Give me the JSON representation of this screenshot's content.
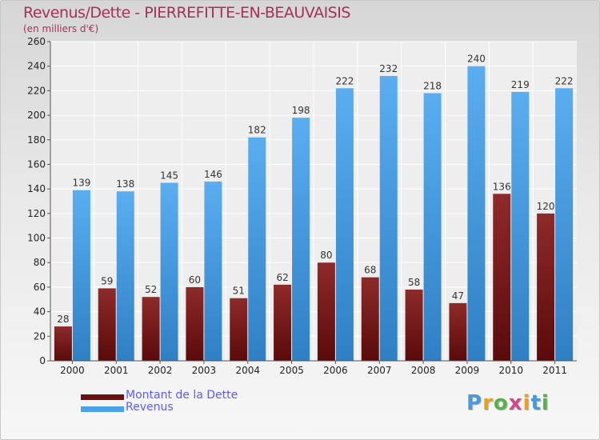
{
  "title": "Revenus/Dette - PIERREFITTE-EN-BEAUVAISIS",
  "subtitle": "(en milliers d'€)",
  "brand": "Proxiti",
  "colors": {
    "title": "#a3325a",
    "debt": "#7a1c1c",
    "revenue": "#4aa3e8",
    "legend_text": "#5a5aff"
  },
  "chart_data": {
    "type": "bar",
    "title": "Revenus/Dette - PIERREFITTE-EN-BEAUVAISIS",
    "subtitle": "(en milliers d'€)",
    "categories": [
      "2000",
      "2001",
      "2002",
      "2003",
      "2004",
      "2005",
      "2006",
      "2007",
      "2008",
      "2009",
      "2010",
      "2011"
    ],
    "series": [
      {
        "name": "Montant de la Dette",
        "values": [
          28,
          59,
          52,
          60,
          51,
          62,
          80,
          68,
          58,
          47,
          136,
          120
        ]
      },
      {
        "name": "Revenus",
        "values": [
          139,
          138,
          145,
          146,
          182,
          198,
          222,
          232,
          218,
          240,
          219,
          222
        ]
      }
    ],
    "ylim": [
      0,
      260
    ],
    "yticks": [
      0,
      20,
      40,
      60,
      80,
      100,
      120,
      140,
      160,
      180,
      200,
      220,
      240,
      260
    ],
    "grid": true,
    "legend": "bottom-left"
  }
}
